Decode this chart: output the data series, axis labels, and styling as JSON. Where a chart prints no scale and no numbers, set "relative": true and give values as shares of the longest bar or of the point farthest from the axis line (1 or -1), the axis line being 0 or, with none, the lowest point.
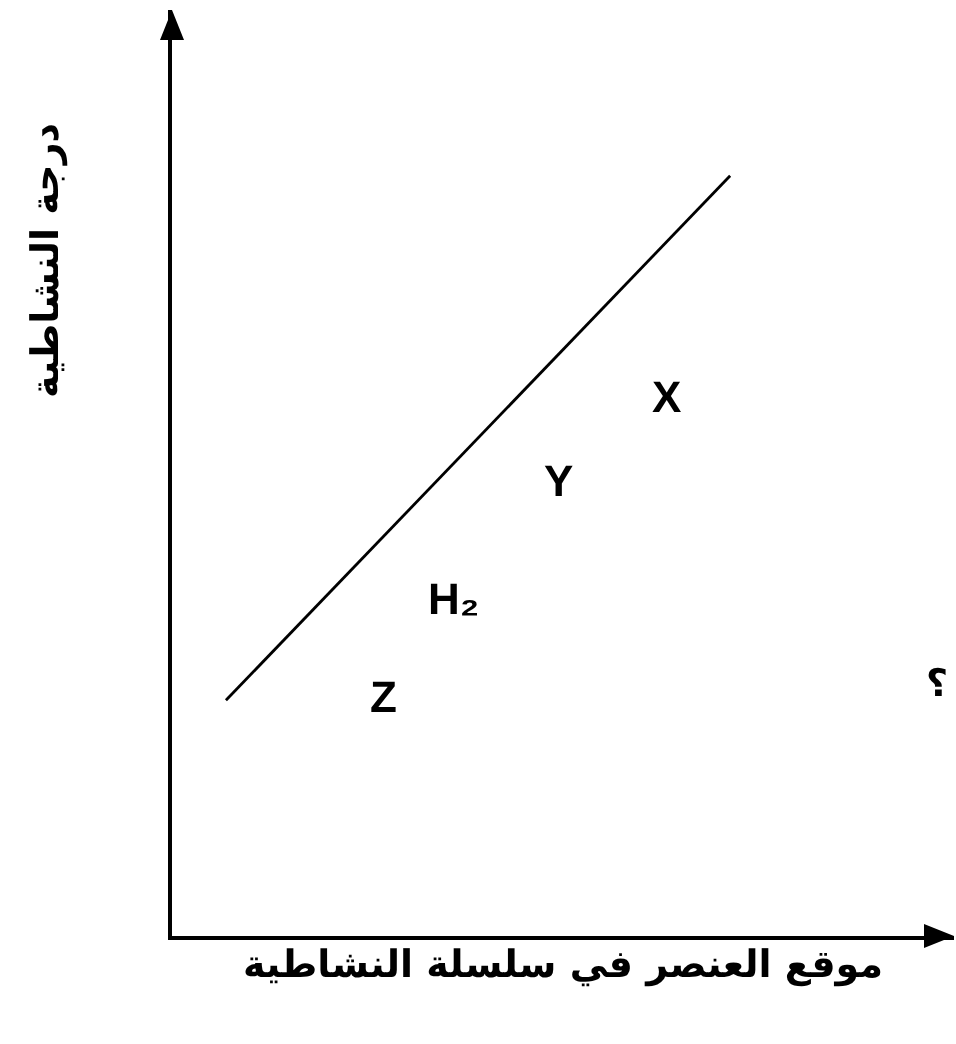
{
  "chart_data": {
    "type": "line",
    "xlabel": "موقع العنصر في سلسلة النشاطية",
    "ylabel": "درجة النشاطية",
    "categories": [
      null,
      null
    ],
    "series": [
      {
        "color": "#000000",
        "values": [
          0.31,
          1
        ]
      }
    ],
    "relative": true,
    "annotations": [
      "Z",
      "H₂",
      "Y",
      "X",
      "؟"
    ]
  }
}
